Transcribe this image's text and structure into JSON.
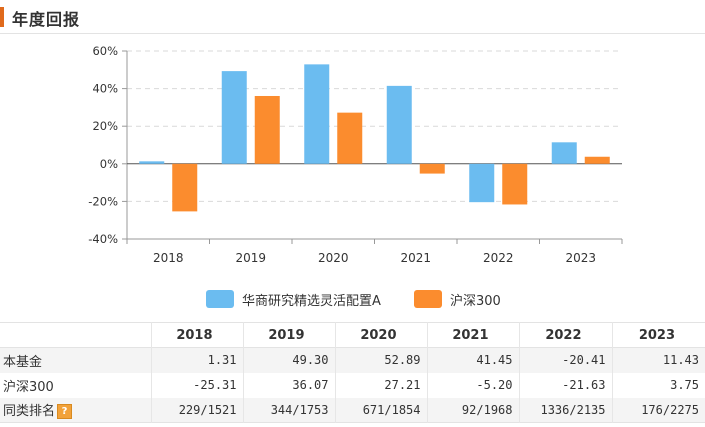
{
  "header": {
    "title": "年度回报"
  },
  "colors": {
    "fund": "#6bbcf0",
    "index": "#fb8c2e",
    "accent": "#e06a1c",
    "grid": "#d9d9d9",
    "axis": "#999999"
  },
  "chart_data": {
    "type": "bar",
    "categories": [
      "2018",
      "2019",
      "2020",
      "2021",
      "2022",
      "2023"
    ],
    "series": [
      {
        "name": "华商研究精选灵活配置A",
        "values": [
          1.31,
          49.3,
          52.89,
          41.45,
          -20.41,
          11.43
        ]
      },
      {
        "name": "沪深300",
        "values": [
          -25.31,
          36.07,
          27.21,
          -5.2,
          -21.63,
          3.75
        ]
      }
    ],
    "ylim": [
      -40,
      60
    ],
    "yticks": [
      "60%",
      "40%",
      "20%",
      "0%",
      "-20%",
      "-40%"
    ],
    "ytick_values": [
      60,
      40,
      20,
      0,
      -20,
      -40
    ],
    "grid": true,
    "legend_position": "bottom"
  },
  "table": {
    "headers": [
      "",
      "2018",
      "2019",
      "2020",
      "2021",
      "2022",
      "2023"
    ],
    "rows": [
      {
        "label": "本基金",
        "values": [
          "1.31",
          "49.30",
          "52.89",
          "41.45",
          "-20.41",
          "11.43"
        ]
      },
      {
        "label": "沪深300",
        "values": [
          "-25.31",
          "36.07",
          "27.21",
          "-5.20",
          "-21.63",
          "3.75"
        ]
      },
      {
        "label": "同类排名",
        "values": [
          "229/1521",
          "344/1753",
          "671/1854",
          "92/1968",
          "1336/2135",
          "176/2275"
        ],
        "help": "?"
      }
    ]
  }
}
